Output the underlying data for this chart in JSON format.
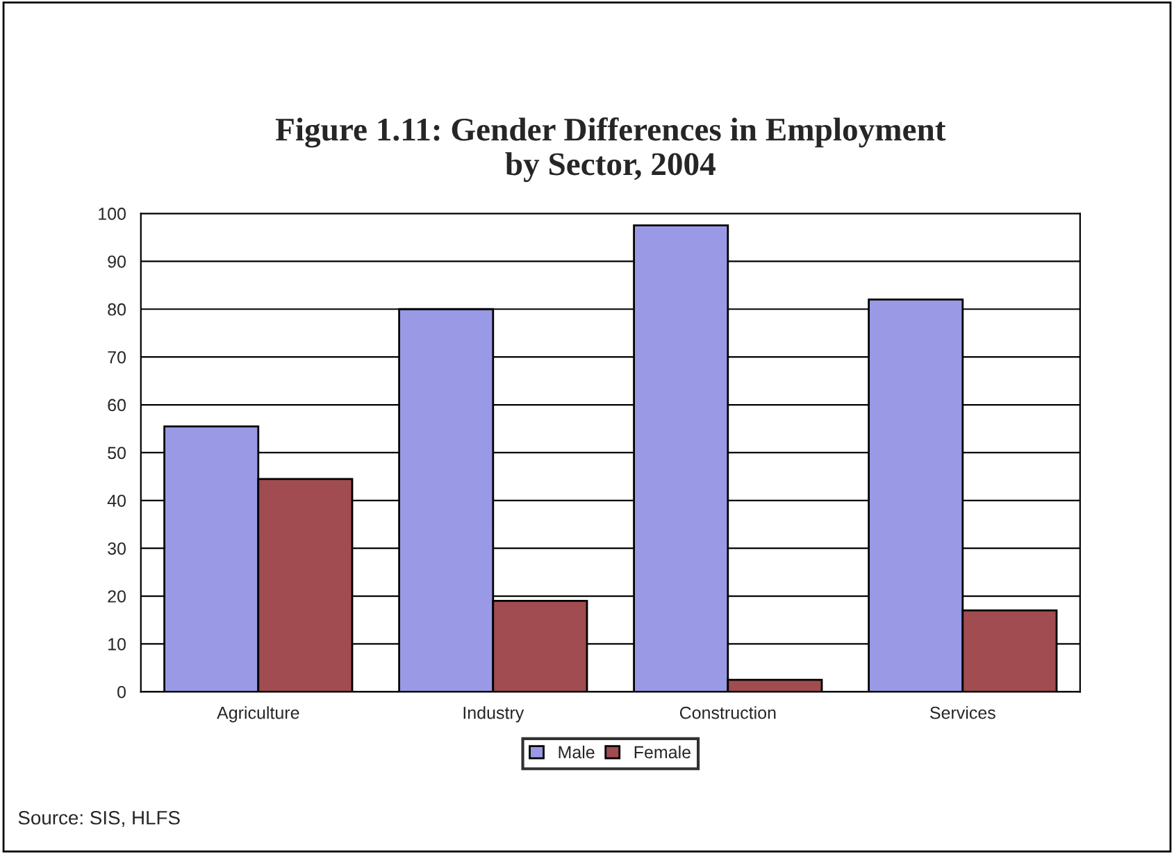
{
  "chart_data": {
    "type": "bar",
    "title": "Figure 1.11: Gender Differences in Employment\nby Sector, 2004",
    "categories": [
      "Agriculture",
      "Industry",
      "Construction",
      "Services"
    ],
    "series": [
      {
        "name": "Male",
        "color": "#9999e6",
        "values": [
          55.5,
          80,
          97.5,
          82
        ]
      },
      {
        "name": "Female",
        "color": "#a04c50",
        "values": [
          44.5,
          19,
          2.5,
          17
        ]
      }
    ],
    "ylim": [
      0,
      100
    ],
    "yticks": [
      0,
      10,
      20,
      30,
      40,
      50,
      60,
      70,
      80,
      90,
      100
    ],
    "grid": "y",
    "legend": "bottom",
    "annotations": [
      "Source: SIS, HLFS"
    ]
  }
}
